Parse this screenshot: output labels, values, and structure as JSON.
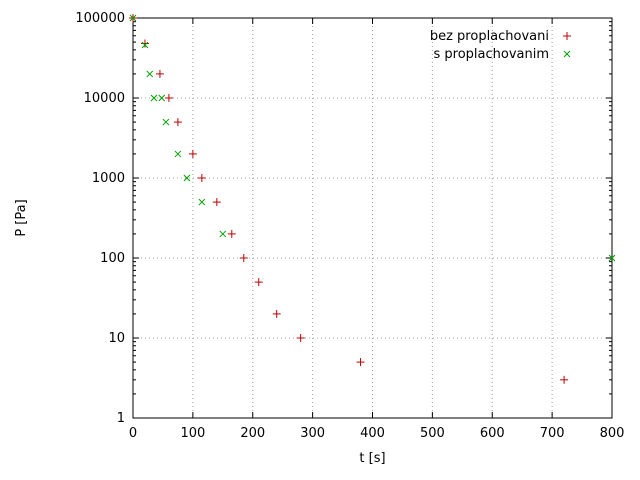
{
  "chart_data": {
    "type": "scatter",
    "title": "",
    "xlabel": "t [s]",
    "ylabel": "P [Pa]",
    "x_scale": "linear",
    "y_scale": "log",
    "xlim": [
      0,
      800
    ],
    "ylim": [
      1,
      100000
    ],
    "x_ticks": [
      0,
      100,
      200,
      300,
      400,
      500,
      600,
      700,
      800
    ],
    "y_ticks": [
      1,
      10,
      100,
      1000,
      10000,
      100000
    ],
    "grid": true,
    "legend_position": "top-right-inside",
    "series": [
      {
        "name": "bez proplachovani",
        "marker": "plus",
        "color": "#c00000",
        "points": [
          [
            0,
            100000
          ],
          [
            20,
            48000
          ],
          [
            45,
            20000
          ],
          [
            60,
            10000
          ],
          [
            75,
            5000
          ],
          [
            100,
            2000
          ],
          [
            115,
            1000
          ],
          [
            140,
            500
          ],
          [
            165,
            200
          ],
          [
            185,
            100
          ],
          [
            210,
            50
          ],
          [
            240,
            20
          ],
          [
            280,
            10
          ],
          [
            380,
            5
          ],
          [
            720,
            3
          ]
        ]
      },
      {
        "name": "s proplachovanim",
        "marker": "cross",
        "color": "#00a000",
        "points": [
          [
            0,
            100000
          ],
          [
            20,
            46000
          ],
          [
            28,
            20000
          ],
          [
            35,
            10000
          ],
          [
            48,
            10000
          ],
          [
            55,
            5000
          ],
          [
            75,
            2000
          ],
          [
            90,
            1000
          ],
          [
            115,
            500
          ],
          [
            150,
            200
          ],
          [
            800,
            100
          ]
        ]
      }
    ]
  }
}
